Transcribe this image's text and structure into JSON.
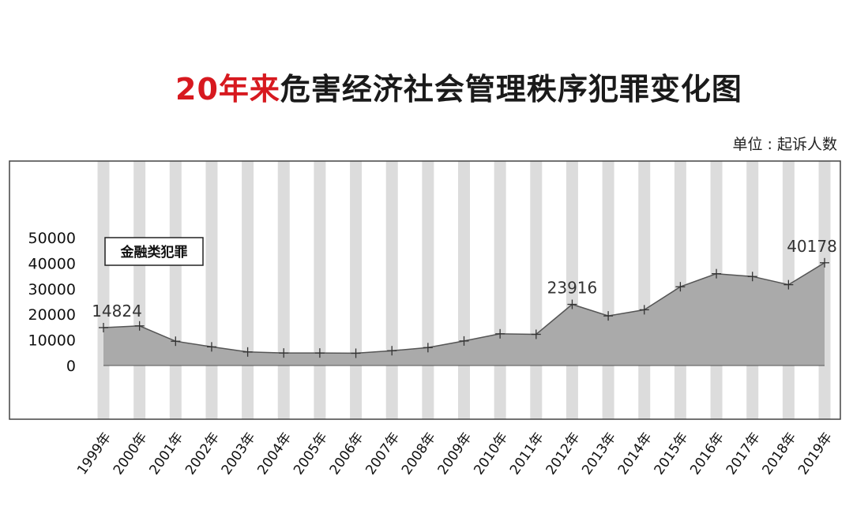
{
  "title": {
    "highlight": "20年来",
    "rest": "危害经济社会管理秩序犯罪变化图"
  },
  "unit": "单位 : 起诉人数",
  "colors": {
    "highlight": "#d7191f",
    "stripe": "#dcdcdc",
    "area": "#aaaaaa",
    "line": "#555555",
    "frame": "#444444"
  },
  "chart_data": {
    "type": "area",
    "title": "20年来危害经济社会管理秩序犯罪变化图",
    "ylabel": "单位 : 起诉人数",
    "legend": {
      "label": "金融类犯罪",
      "position": "top-left"
    },
    "ylim": [
      0,
      50000
    ],
    "yticks": [
      "0",
      "10000",
      "20000",
      "30000",
      "40000",
      "50000"
    ],
    "grid": false,
    "categories": [
      "1999年",
      "2000年",
      "2001年",
      "2002年",
      "2003年",
      "2004年",
      "2005年",
      "2006年",
      "2007年",
      "2008年",
      "2009年",
      "2010年",
      "2011年",
      "2012年",
      "2013年",
      "2014年",
      "2015年",
      "2016年",
      "2017年",
      "2018年",
      "2019年"
    ],
    "series": [
      {
        "name": "金融类犯罪",
        "values": [
          14824,
          15500,
          9500,
          7300,
          5300,
          4900,
          4900,
          4800,
          5800,
          7000,
          9600,
          12400,
          12200,
          23916,
          19400,
          21800,
          30800,
          35900,
          34800,
          31600,
          40178
        ]
      }
    ],
    "data_labels": [
      {
        "index": 0,
        "text": "14824"
      },
      {
        "index": 13,
        "text": "23916"
      },
      {
        "index": 20,
        "text": "40178"
      }
    ]
  }
}
